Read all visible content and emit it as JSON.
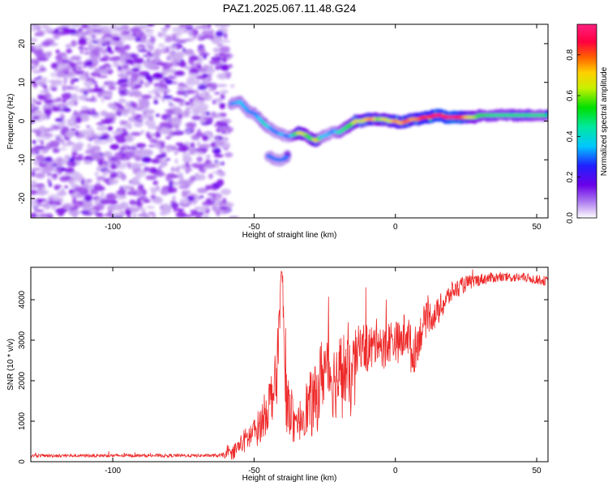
{
  "title": "PAZ1.2025.067.11.48.G24",
  "chart_data": [
    {
      "type": "heatmap",
      "xlabel": "Height of straight line (km)",
      "ylabel": "Frequency (Hz)",
      "xlim": [
        -129,
        54
      ],
      "ylim": [
        -25,
        25
      ],
      "xticks": [
        -100,
        -50,
        0,
        50
      ],
      "yticks": [
        -20,
        -10,
        0,
        10,
        20
      ],
      "xtick_labels": [
        "-100",
        "-50",
        "0",
        "50"
      ],
      "ytick_labels": [
        "-20",
        "-10",
        "0",
        "10",
        "20"
      ],
      "colorbar": {
        "label": "Normalized spectral amplitude",
        "range": [
          0,
          0.95
        ],
        "ticks": [
          0,
          0.2,
          0.4,
          0.6,
          0.8
        ],
        "tick_labels": [
          "0.0",
          "0.2",
          "0.4",
          "0.6",
          "0.8"
        ],
        "colormap": [
          "#ffffff",
          "#c8a8f0",
          "#7a00e8",
          "#2020ff",
          "#00c8ff",
          "#00e8a0",
          "#00e000",
          "#c8f000",
          "#ffd000",
          "#ff6000",
          "#ff0040",
          "#ff2080"
        ]
      },
      "noise_region_x": [
        -129,
        -59
      ],
      "signal_track": {
        "x": [
          -58,
          -55,
          -52,
          -50,
          -48,
          -46,
          -44,
          -42,
          -40,
          -38,
          -36,
          -34,
          -32,
          -30,
          -28,
          -26,
          -24,
          -22,
          -20,
          -18,
          -16,
          -14,
          -12,
          -10,
          -8,
          -6,
          -4,
          -2,
          0,
          2,
          4,
          6,
          8,
          10,
          12,
          14,
          16,
          18,
          20,
          22,
          24,
          26,
          28,
          30,
          35,
          40,
          45,
          50,
          54
        ],
        "y": [
          4.5,
          5,
          2.5,
          2,
          0.5,
          -1,
          -2,
          -3,
          -3.5,
          -4,
          -3.5,
          -3,
          -3.5,
          -4.5,
          -5,
          -4,
          -3.5,
          -2.5,
          -3,
          -2,
          -1,
          0,
          0,
          0.5,
          0.5,
          0.5,
          0.5,
          0,
          0,
          -0.5,
          0,
          0.5,
          0.5,
          1,
          1,
          1.5,
          1.5,
          1,
          1,
          1,
          1,
          1,
          1,
          1.5,
          1.5,
          1.5,
          1.5,
          1.5,
          1.5
        ],
        "amplitude": [
          0.3,
          0.35,
          0.32,
          0.3,
          0.35,
          0.4,
          0.32,
          0.3,
          0.35,
          0.28,
          0.4,
          0.65,
          0.6,
          0.45,
          0.7,
          0.35,
          0.35,
          0.3,
          0.4,
          0.45,
          0.5,
          0.65,
          0.6,
          0.7,
          0.75,
          0.55,
          0.65,
          0.6,
          0.75,
          0.7,
          0.8,
          0.72,
          0.75,
          0.85,
          0.8,
          0.9,
          0.92,
          0.88,
          0.95,
          0.92,
          0.78,
          0.65,
          0.6,
          0.5,
          0.45,
          0.45,
          0.45,
          0.45,
          0.45
        ]
      },
      "side_branches": [
        {
          "x": [
            -45,
            -42,
            -40,
            -38
          ],
          "y": [
            -9,
            -10,
            -10,
            -9
          ],
          "amplitude": 0.3
        }
      ]
    },
    {
      "type": "line",
      "xlabel": "Height of straight line (km)",
      "ylabel": "SNR (10 * v/v)",
      "xlim": [
        -129,
        54
      ],
      "ylim": [
        0,
        4800
      ],
      "xticks": [
        -100,
        -50,
        0,
        50
      ],
      "yticks": [
        0,
        1000,
        2000,
        3000,
        4000
      ],
      "xtick_labels": [
        "-100",
        "-50",
        "0",
        "50"
      ],
      "ytick_labels": [
        "0",
        "1000",
        "2000",
        "3000",
        "4000"
      ],
      "series": [
        {
          "color": "#ee2a2a",
          "x": [
            -129,
            -100,
            -80,
            -62,
            -58,
            -55,
            -52,
            -50,
            -48,
            -46,
            -44,
            -42,
            -41,
            -40,
            -39,
            -38,
            -37,
            -36,
            -35,
            -34,
            -32,
            -30,
            -28,
            -26,
            -24,
            -22,
            -20,
            -18,
            -16,
            -14,
            -12,
            -10,
            -8,
            -6,
            -4,
            -2,
            0,
            2,
            4,
            6,
            8,
            10,
            12,
            14,
            16,
            18,
            20,
            25,
            30,
            35,
            40,
            45,
            50,
            54
          ],
          "y": [
            150,
            150,
            150,
            150,
            200,
            400,
            600,
            700,
            900,
            1200,
            1600,
            2000,
            3800,
            4600,
            2000,
            1200,
            1500,
            800,
            700,
            1000,
            1300,
            1400,
            1500,
            2200,
            2400,
            2000,
            2100,
            2300,
            1900,
            2600,
            2900,
            2800,
            2800,
            3100,
            2700,
            3000,
            3000,
            2900,
            3300,
            2600,
            3000,
            3400,
            3600,
            3600,
            3800,
            4000,
            4200,
            4400,
            4500,
            4550,
            4550,
            4550,
            4500,
            4450
          ],
          "noise": [
            40,
            40,
            40,
            40,
            150,
            250,
            350,
            400,
            450,
            550,
            650,
            800,
            600,
            500,
            900,
            800,
            700,
            550,
            400,
            500,
            650,
            850,
            900,
            950,
            950,
            950,
            1050,
            1000,
            950,
            700,
            550,
            650,
            600,
            500,
            600,
            550,
            500,
            550,
            600,
            600,
            500,
            450,
            400,
            350,
            350,
            300,
            250,
            200,
            150,
            130,
            120,
            120,
            120,
            120
          ]
        }
      ]
    }
  ]
}
